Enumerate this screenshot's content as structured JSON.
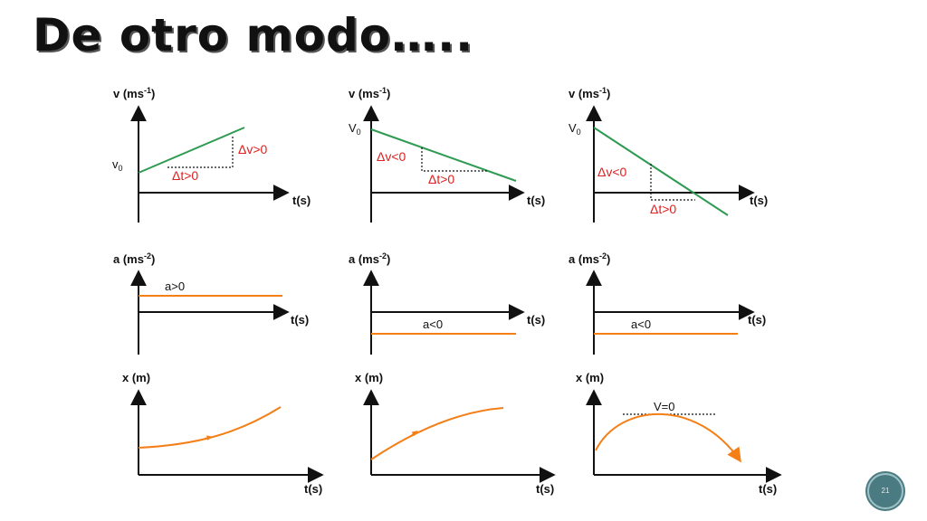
{
  "slide": {
    "title": "De otro modo….."
  },
  "page_number": "21",
  "colors": {
    "velocity": "#2e9a52",
    "curve": "#f57f17",
    "change_label": "#e02020",
    "axis": "#111111"
  },
  "labels": {
    "v_axis": "v (ms",
    "v_unit_exp": "-1",
    "a_axis": "a (ms",
    "a_unit_exp": "-2",
    "x_axis": "x (m)",
    "t_axis": "t(s)",
    "v0": "v",
    "v0_sub": "0",
    "v0_alt": "V",
    "v0_alt_sub": "0"
  },
  "velocity_graphs": [
    {
      "dv": "Δv>0",
      "dt": "Δt>0"
    },
    {
      "dv": "Δv<0",
      "dt": "Δt>0"
    },
    {
      "dv": "Δv<0",
      "dt": "Δt>0"
    }
  ],
  "acceleration_graphs": [
    {
      "label": "a>0"
    },
    {
      "label": "a<0"
    },
    {
      "label": "a<0"
    }
  ],
  "position_graphs": [
    {
      "note": ""
    },
    {
      "note": ""
    },
    {
      "note": "V=0"
    }
  ]
}
